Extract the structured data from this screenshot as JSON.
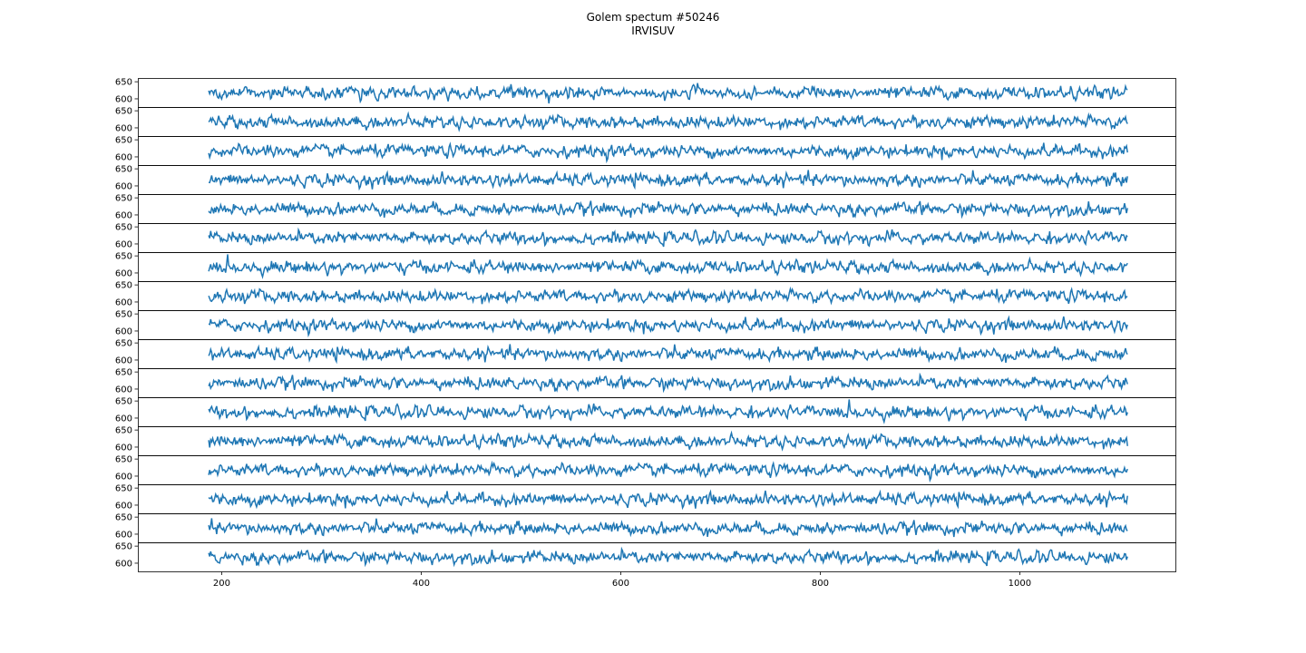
{
  "chart_data": {
    "type": "line",
    "title": "Golem spectum #50246",
    "subtitle": "IRVISUV",
    "xlabel": "",
    "ylabel": "",
    "panel_count": 17,
    "xlim": [
      116,
      1156
    ],
    "ylim": [
      576,
      661
    ],
    "x_ticks": [
      200,
      400,
      600,
      800,
      1000
    ],
    "y_ticks": [
      600,
      650
    ],
    "x_data_range": [
      187,
      1108
    ],
    "series_level": 617,
    "series_noise_std": 8,
    "line_color": "#1f77b4",
    "grid": false,
    "legend": "none"
  }
}
